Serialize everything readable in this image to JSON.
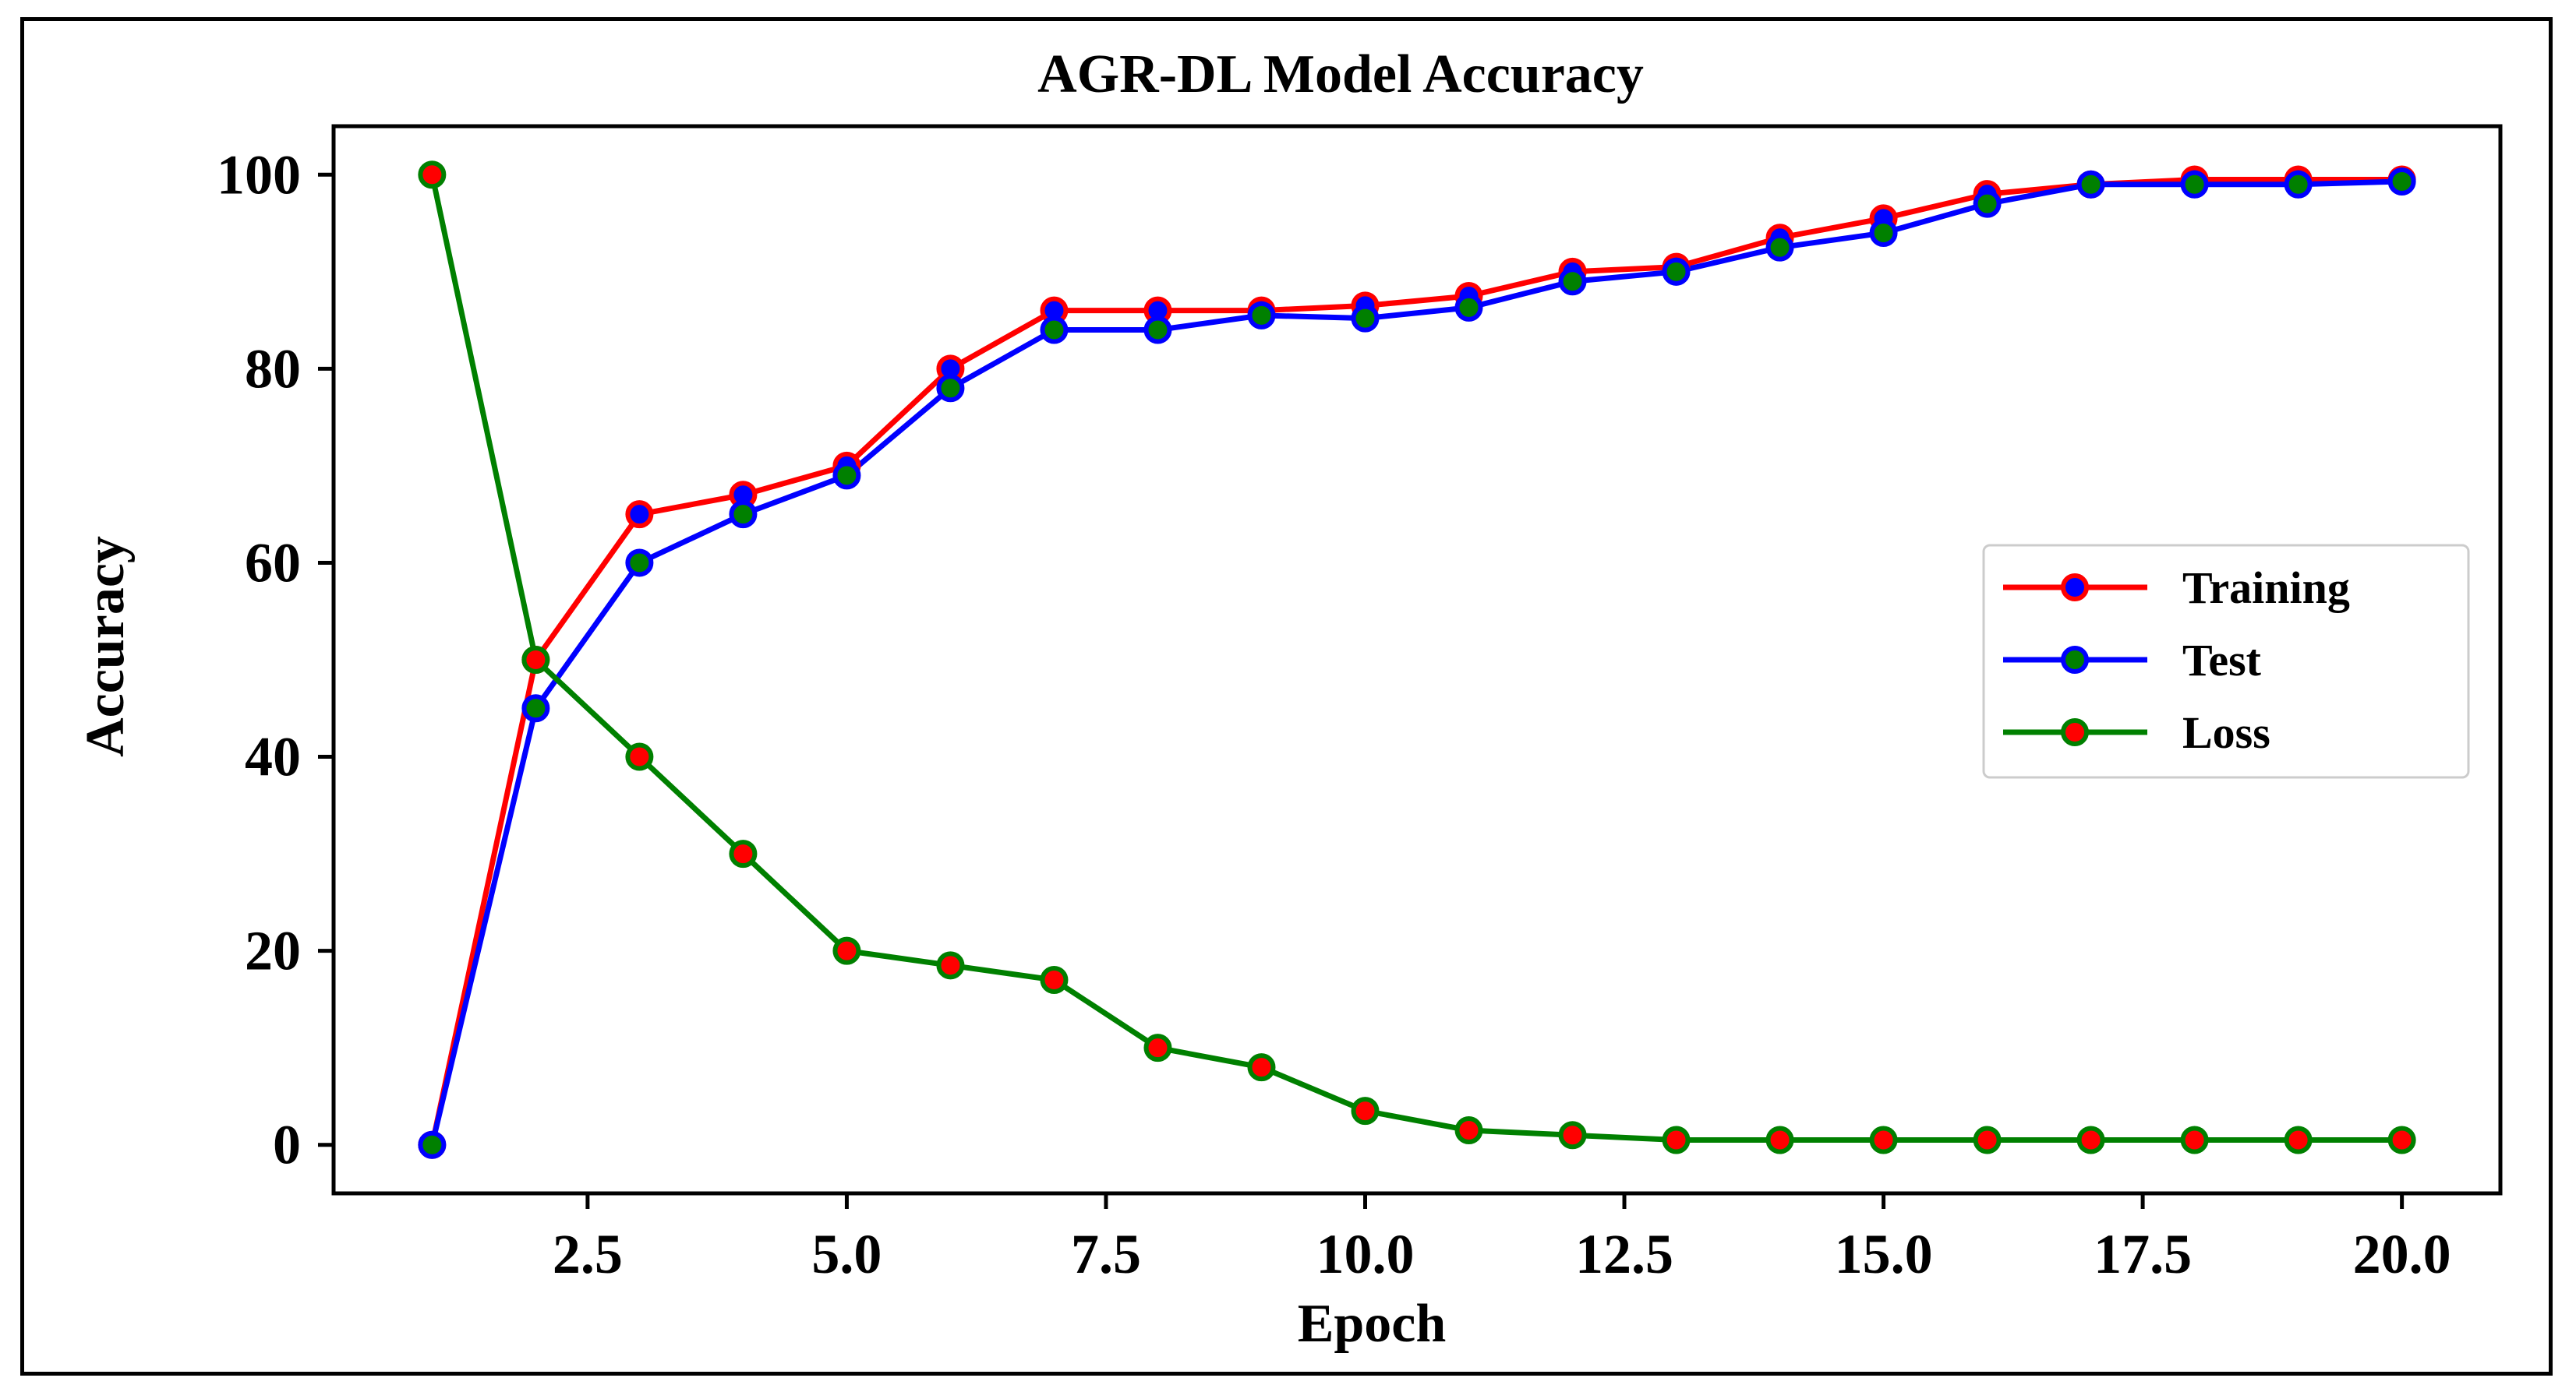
{
  "chart_data": {
    "type": "line",
    "title": "AGR-DL Model Accuracy",
    "xlabel": "Epoch",
    "ylabel": "Accuracy",
    "xlim": [
      0.05,
      20.95
    ],
    "ylim": [
      -5,
      105
    ],
    "xticks": [
      2.5,
      5.0,
      7.5,
      10.0,
      12.5,
      15.0,
      17.5,
      20.0
    ],
    "xtick_labels": [
      "2.5",
      "5.0",
      "7.5",
      "10.0",
      "12.5",
      "15.0",
      "17.5",
      "20.0"
    ],
    "yticks": [
      0,
      20,
      40,
      60,
      80,
      100
    ],
    "ytick_labels": [
      "0",
      "20",
      "40",
      "60",
      "80",
      "100"
    ],
    "grid": false,
    "legend_position": "center-right",
    "x": [
      1,
      2,
      3,
      4,
      5,
      6,
      7,
      8,
      9,
      10,
      11,
      12,
      13,
      14,
      15,
      16,
      17,
      18,
      19,
      20
    ],
    "series": [
      {
        "name": "Training",
        "color": "#ff0000",
        "marker_color": "#0000ff",
        "values": [
          0,
          50,
          65,
          67,
          70,
          80,
          86,
          86,
          86,
          86.5,
          87.5,
          90,
          90.5,
          93.5,
          95.5,
          98,
          99,
          99.5,
          99.5,
          99.5
        ]
      },
      {
        "name": "Test",
        "color": "#0000ff",
        "marker_color": "#008000",
        "values": [
          0,
          45,
          60,
          65,
          69,
          78,
          84,
          84,
          85.5,
          85.2,
          86.3,
          89,
          90,
          92.5,
          94,
          97,
          99,
          99,
          99,
          99.3
        ]
      },
      {
        "name": "Loss",
        "color": "#008000",
        "marker_color": "#ff0000",
        "values": [
          100,
          50,
          40,
          30,
          20,
          18.5,
          17,
          10,
          8,
          3.5,
          1.5,
          1,
          0.5,
          0.5,
          0.5,
          0.5,
          0.5,
          0.5,
          0.5,
          0.5
        ]
      }
    ]
  }
}
